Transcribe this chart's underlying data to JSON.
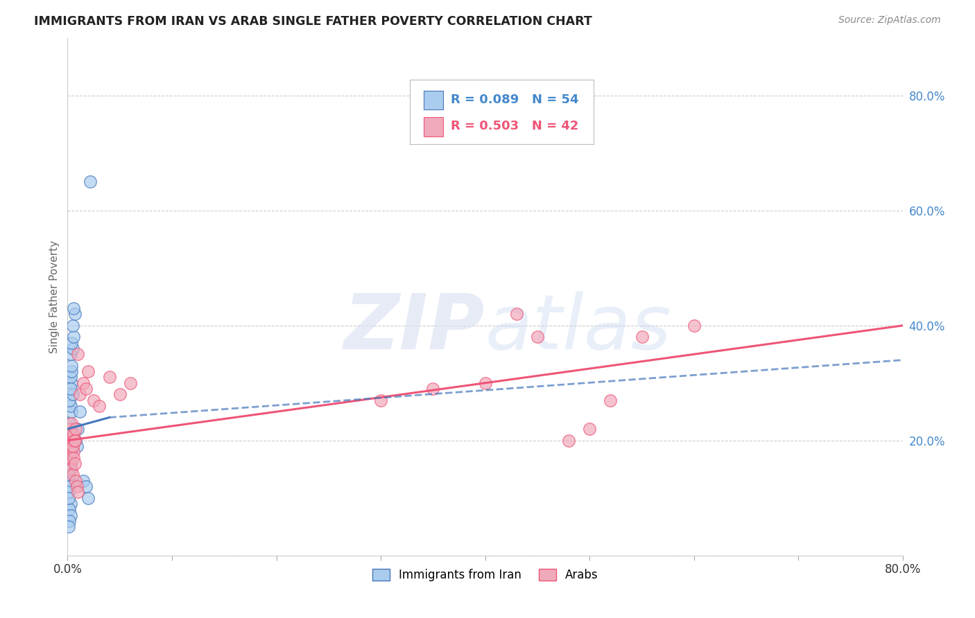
{
  "title": "IMMIGRANTS FROM IRAN VS ARAB SINGLE FATHER POVERTY CORRELATION CHART",
  "source": "Source: ZipAtlas.com",
  "ylabel": "Single Father Poverty",
  "xlim": [
    0.0,
    0.8
  ],
  "ylim": [
    0.0,
    0.9
  ],
  "ytick_positions": [
    0.0,
    0.2,
    0.4,
    0.6,
    0.8
  ],
  "ytick_labels": [
    "",
    "20.0%",
    "40.0%",
    "60.0%",
    "80.0%"
  ],
  "xtick_positions": [
    0.0,
    0.1,
    0.2,
    0.3,
    0.4,
    0.5,
    0.6,
    0.7,
    0.8
  ],
  "xtick_labels": [
    "0.0%",
    "",
    "",
    "",
    "",
    "",
    "",
    "",
    "80.0%"
  ],
  "color_iran": "#aaccee",
  "color_arab": "#f0aabb",
  "color_iran_line": "#4477bb",
  "color_arab_line": "#ee5577",
  "iran_R": 0.089,
  "iran_N": 54,
  "arab_R": 0.503,
  "arab_N": 42,
  "iran_x": [
    0.001,
    0.002,
    0.001,
    0.003,
    0.002,
    0.004,
    0.001,
    0.002,
    0.003,
    0.001,
    0.002,
    0.003,
    0.001,
    0.002,
    0.001,
    0.002,
    0.003,
    0.001,
    0.002,
    0.001,
    0.002,
    0.001,
    0.003,
    0.002,
    0.001,
    0.002,
    0.001,
    0.003,
    0.002,
    0.001,
    0.004,
    0.003,
    0.002,
    0.004,
    0.003,
    0.005,
    0.004,
    0.003,
    0.004,
    0.003,
    0.005,
    0.004,
    0.006,
    0.005,
    0.007,
    0.006,
    0.008,
    0.009,
    0.01,
    0.012,
    0.015,
    0.018,
    0.02,
    0.022
  ],
  "iran_y": [
    0.2,
    0.18,
    0.16,
    0.22,
    0.19,
    0.21,
    0.17,
    0.23,
    0.2,
    0.15,
    0.14,
    0.18,
    0.19,
    0.21,
    0.2,
    0.17,
    0.16,
    0.22,
    0.2,
    0.13,
    0.12,
    0.11,
    0.09,
    0.08,
    0.1,
    0.15,
    0.14,
    0.07,
    0.06,
    0.05,
    0.25,
    0.26,
    0.27,
    0.3,
    0.31,
    0.28,
    0.32,
    0.29,
    0.33,
    0.35,
    0.36,
    0.37,
    0.38,
    0.4,
    0.42,
    0.43,
    0.2,
    0.19,
    0.22,
    0.25,
    0.13,
    0.12,
    0.1,
    0.65
  ],
  "arab_x": [
    0.001,
    0.002,
    0.003,
    0.002,
    0.003,
    0.004,
    0.003,
    0.004,
    0.005,
    0.004,
    0.005,
    0.006,
    0.005,
    0.006,
    0.007,
    0.006,
    0.007,
    0.008,
    0.007,
    0.008,
    0.009,
    0.01,
    0.01,
    0.012,
    0.015,
    0.018,
    0.02,
    0.025,
    0.03,
    0.04,
    0.05,
    0.06,
    0.3,
    0.35,
    0.4,
    0.43,
    0.45,
    0.48,
    0.5,
    0.52,
    0.55,
    0.6
  ],
  "arab_y": [
    0.2,
    0.18,
    0.16,
    0.22,
    0.19,
    0.21,
    0.17,
    0.23,
    0.2,
    0.15,
    0.14,
    0.18,
    0.19,
    0.21,
    0.2,
    0.17,
    0.16,
    0.22,
    0.2,
    0.13,
    0.12,
    0.11,
    0.35,
    0.28,
    0.3,
    0.29,
    0.32,
    0.27,
    0.26,
    0.31,
    0.28,
    0.3,
    0.27,
    0.29,
    0.3,
    0.42,
    0.38,
    0.2,
    0.22,
    0.27,
    0.38,
    0.4
  ],
  "iran_line_x0": 0.0,
  "iran_line_x_solid_end": 0.04,
  "iran_line_x_dash_end": 0.8,
  "iran_line_y0": 0.22,
  "iran_line_y_solid_end": 0.24,
  "iran_line_y_dash_end": 0.34,
  "arab_line_x0": 0.0,
  "arab_line_x_end": 0.8,
  "arab_line_y0": 0.2,
  "arab_line_y_end": 0.4
}
